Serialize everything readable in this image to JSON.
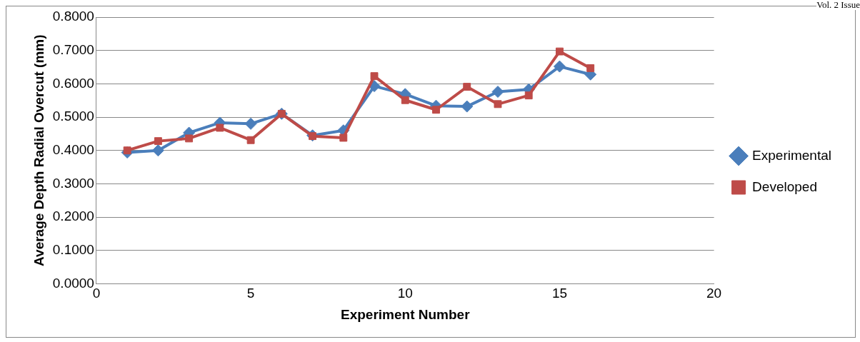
{
  "chart_data": {
    "type": "line",
    "xlabel": "Experiment Number",
    "ylabel": "Average Depth Radial Overcut (mm)",
    "annotations": [
      "Vol. 2 Issue"
    ],
    "x": [
      1,
      2,
      3,
      4,
      5,
      6,
      7,
      8,
      9,
      10,
      11,
      12,
      13,
      14,
      15,
      16
    ],
    "series": [
      {
        "name": "Experimental",
        "color": "#4a7ebb",
        "marker": "diamond",
        "values": [
          0.394,
          0.4,
          0.453,
          0.483,
          0.48,
          0.51,
          0.445,
          0.46,
          0.593,
          0.569,
          0.534,
          0.532,
          0.576,
          0.583,
          0.652,
          0.628
        ]
      },
      {
        "name": "Developed",
        "color": "#be4b48",
        "marker": "square",
        "values": [
          0.4,
          0.428,
          0.436,
          0.468,
          0.431,
          0.51,
          0.443,
          0.438,
          0.623,
          0.551,
          0.522,
          0.591,
          0.539,
          0.565,
          0.697,
          0.647
        ]
      }
    ],
    "xlim": [
      0,
      20
    ],
    "xticks": [
      0,
      5,
      10,
      15,
      20
    ],
    "ylim": [
      0,
      0.8
    ],
    "yticks": [
      {
        "value": 0,
        "label": "0.0000"
      },
      {
        "value": 0.1,
        "label": "0.1000"
      },
      {
        "value": 0.2,
        "label": "0.2000"
      },
      {
        "value": 0.3,
        "label": "0.3000"
      },
      {
        "value": 0.4,
        "label": "0.4000"
      },
      {
        "value": 0.5,
        "label": "0.5000"
      },
      {
        "value": 0.6,
        "label": "0.6000"
      },
      {
        "value": 0.7,
        "label": "0.7000"
      },
      {
        "value": 0.8,
        "label": "0.8000"
      }
    ],
    "grid": "y",
    "legend": "right"
  }
}
